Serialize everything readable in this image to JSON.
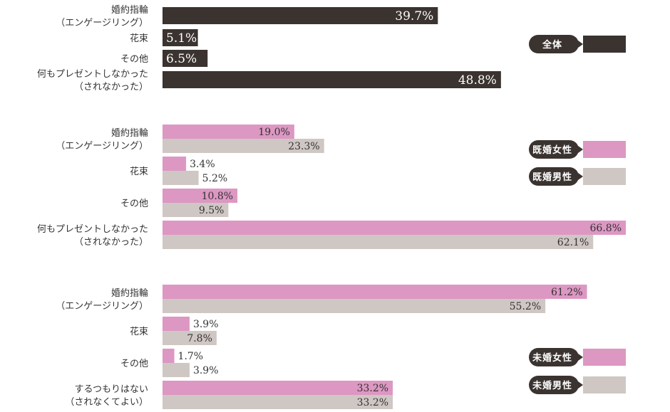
{
  "colors": {
    "overall": "#3a3330",
    "female": "#dd97c3",
    "male": "#cfc7c4",
    "legend_bg": "#3a3330",
    "text": "#333333"
  },
  "chart_data": [
    {
      "type": "bar",
      "orientation": "horizontal",
      "title": "",
      "xlim": [
        0,
        70
      ],
      "unit": "%",
      "categories": [
        [
          "婚約指輪",
          "（エンゲージリング）"
        ],
        [
          "花束"
        ],
        [
          "その他"
        ],
        [
          "何もプレゼントしなかった",
          "（されなかった）"
        ]
      ],
      "series": [
        {
          "name": "全体",
          "color_key": "overall",
          "values": [
            39.7,
            5.1,
            6.5,
            48.8
          ],
          "labels": [
            "39.7%",
            "5.1%",
            "6.5%",
            "48.8%"
          ]
        }
      ],
      "legend": [
        {
          "label": "全体",
          "color_key": "overall"
        }
      ]
    },
    {
      "type": "bar",
      "orientation": "horizontal",
      "title": "",
      "xlim": [
        0,
        70
      ],
      "unit": "%",
      "categories": [
        [
          "婚約指輪",
          "（エンゲージリング）"
        ],
        [
          "花束"
        ],
        [
          "その他"
        ],
        [
          "何もプレゼントしなかった",
          "（されなかった）"
        ]
      ],
      "series": [
        {
          "name": "既婚女性",
          "color_key": "female",
          "values": [
            19.0,
            3.4,
            10.8,
            66.8
          ],
          "labels": [
            "19.0%",
            "3.4%",
            "10.8%",
            "66.8%"
          ]
        },
        {
          "name": "既婚男性",
          "color_key": "male",
          "values": [
            23.3,
            5.2,
            9.5,
            62.1
          ],
          "labels": [
            "23.3%",
            "5.2%",
            "9.5%",
            "62.1%"
          ]
        }
      ],
      "legend": [
        {
          "label": "既婚女性",
          "color_key": "female"
        },
        {
          "label": "既婚男性",
          "color_key": "male"
        }
      ]
    },
    {
      "type": "bar",
      "orientation": "horizontal",
      "title": "",
      "xlim": [
        0,
        70
      ],
      "unit": "%",
      "categories": [
        [
          "婚約指輪",
          "（エンゲージリング）"
        ],
        [
          "花束"
        ],
        [
          "その他"
        ],
        [
          "するつもりはない",
          "（されなくてよい）"
        ]
      ],
      "series": [
        {
          "name": "未婚女性",
          "color_key": "female",
          "values": [
            61.2,
            3.9,
            1.7,
            33.2
          ],
          "labels": [
            "61.2%",
            "3.9%",
            "1.7%",
            "33.2%"
          ]
        },
        {
          "name": "未婚男性",
          "color_key": "male",
          "values": [
            55.2,
            7.8,
            3.9,
            33.2
          ],
          "labels": [
            "55.2%",
            "7.8%",
            "3.9%",
            "33.2%"
          ]
        }
      ],
      "legend": [
        {
          "label": "未婚女性",
          "color_key": "female"
        },
        {
          "label": "未婚男性",
          "color_key": "male"
        }
      ]
    }
  ]
}
